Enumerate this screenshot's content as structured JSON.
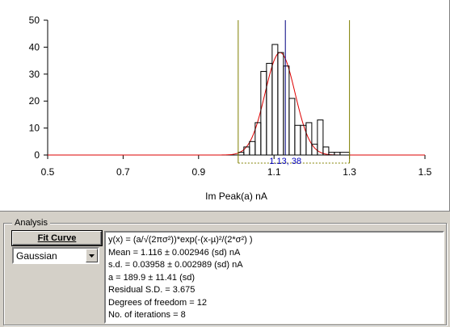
{
  "chart_data": {
    "type": "bar",
    "title": "",
    "xlabel": "Im Peak(a) nA",
    "ylabel": "",
    "xlim": [
      0.5,
      1.5
    ],
    "ylim": [
      0,
      50
    ],
    "xticks": [
      0.5,
      0.7,
      0.9,
      1.1,
      1.3,
      1.5
    ],
    "xtick_labels": [
      "0.5",
      "0.7",
      "0.9",
      "1.1",
      "1.3",
      "1.5"
    ],
    "yticks": [
      0,
      10,
      20,
      30,
      40,
      50
    ],
    "ytick_labels": [
      "0",
      "10",
      "20",
      "30",
      "40",
      "50"
    ],
    "histogram": {
      "bin_width": 0.015,
      "bins": [
        {
          "x0": 1.005,
          "x1": 1.02,
          "count": 1
        },
        {
          "x0": 1.02,
          "x1": 1.035,
          "count": 3
        },
        {
          "x0": 1.035,
          "x1": 1.05,
          "count": 5
        },
        {
          "x0": 1.05,
          "x1": 1.065,
          "count": 12
        },
        {
          "x0": 1.065,
          "x1": 1.08,
          "count": 31
        },
        {
          "x0": 1.08,
          "x1": 1.095,
          "count": 34
        },
        {
          "x0": 1.095,
          "x1": 1.11,
          "count": 41
        },
        {
          "x0": 1.11,
          "x1": 1.125,
          "count": 38
        },
        {
          "x0": 1.125,
          "x1": 1.14,
          "count": 33
        },
        {
          "x0": 1.14,
          "x1": 1.155,
          "count": 21
        },
        {
          "x0": 1.155,
          "x1": 1.17,
          "count": 11
        },
        {
          "x0": 1.17,
          "x1": 1.185,
          "count": 11
        },
        {
          "x0": 1.185,
          "x1": 1.2,
          "count": 12
        },
        {
          "x0": 1.2,
          "x1": 1.215,
          "count": 4
        },
        {
          "x0": 1.215,
          "x1": 1.23,
          "count": 13
        },
        {
          "x0": 1.23,
          "x1": 1.245,
          "count": 3
        },
        {
          "x0": 1.245,
          "x1": 1.26,
          "count": 1
        },
        {
          "x0": 1.26,
          "x1": 1.275,
          "count": 1
        },
        {
          "x0": 1.275,
          "x1": 1.3,
          "count": 1
        }
      ],
      "color": "#000000"
    },
    "fit": {
      "model": "gaussian",
      "mean": 1.116,
      "sd": 0.03958,
      "peak": 38,
      "color": "#dd0000"
    },
    "cursors": [
      {
        "x": 1.005,
        "color": "#808000"
      },
      {
        "x": 1.3,
        "color": "#808000"
      }
    ],
    "marker": {
      "x": 1.13,
      "y": 38,
      "label": "1.13, 38",
      "color": "#0000c0"
    }
  },
  "analysis": {
    "group_label": "Analysis",
    "fit_button_label": "Fit Curve",
    "model_selected": "Gaussian",
    "results": [
      "y(x) = (a/√(2πσ²))*exp(-(x-µ)²/(2*σ²) )",
      "Mean = 1.116 ± 0.002946 (sd) nA",
      "s.d. = 0.03958 ± 0.002989 (sd) nA",
      "a = 189.9 ± 11.41 (sd)",
      "Residual S.D. = 3.675",
      "Degrees of freedom = 12",
      "No. of iterations = 8"
    ]
  }
}
